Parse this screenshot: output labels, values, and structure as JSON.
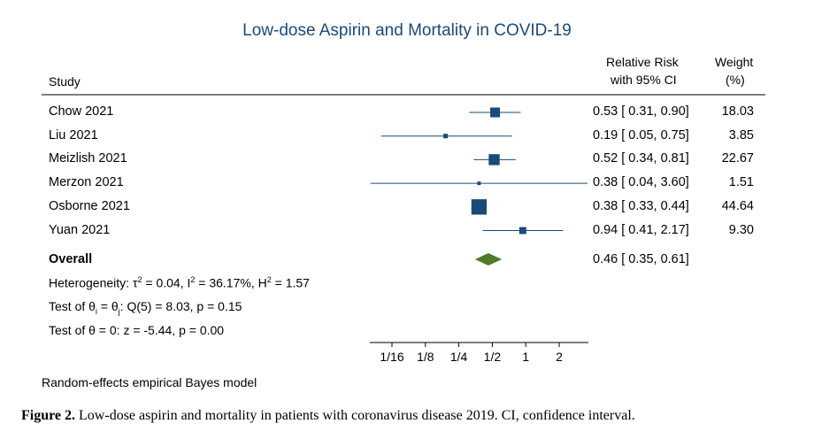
{
  "chart_data": {
    "type": "forest",
    "title": "Low-dose Aspirin and Mortality in COVID-19",
    "columns": {
      "study": "Study",
      "rr_line1": "Relative Risk",
      "rr_line2": "with 95% CI",
      "weight_line1": "Weight",
      "weight_line2": "(%)"
    },
    "studies": [
      {
        "name": "Chow 2021",
        "rr": 0.53,
        "lo": 0.31,
        "hi": 0.9,
        "weight": 18.03,
        "ci_text": "0.53 [ 0.31,  0.90]",
        "weight_text": "18.03"
      },
      {
        "name": "Liu 2021",
        "rr": 0.19,
        "lo": 0.05,
        "hi": 0.75,
        "weight": 3.85,
        "ci_text": "0.19 [ 0.05,  0.75]",
        "weight_text": "3.85"
      },
      {
        "name": "Meizlish 2021",
        "rr": 0.52,
        "lo": 0.34,
        "hi": 0.81,
        "weight": 22.67,
        "ci_text": "0.52 [ 0.34,  0.81]",
        "weight_text": "22.67"
      },
      {
        "name": "Merzon 2021",
        "rr": 0.38,
        "lo": 0.04,
        "hi": 3.6,
        "weight": 1.51,
        "ci_text": "0.38 [ 0.04,  3.60]",
        "weight_text": "1.51"
      },
      {
        "name": "Osborne 2021",
        "rr": 0.38,
        "lo": 0.33,
        "hi": 0.44,
        "weight": 44.64,
        "ci_text": "0.38 [ 0.33,  0.44]",
        "weight_text": "44.64"
      },
      {
        "name": "Yuan 2021",
        "rr": 0.94,
        "lo": 0.41,
        "hi": 2.17,
        "weight": 9.3,
        "ci_text": "0.94 [ 0.41,  2.17]",
        "weight_text": "9.30"
      }
    ],
    "overall": {
      "name": "Overall",
      "rr": 0.46,
      "lo": 0.35,
      "hi": 0.61,
      "ci_text": "0.46 [ 0.35,  0.61]"
    },
    "x_scale": "log",
    "x_ticks": [
      {
        "value": 0.0625,
        "label": "1/16"
      },
      {
        "value": 0.125,
        "label": "1/8"
      },
      {
        "value": 0.25,
        "label": "1/4"
      },
      {
        "value": 0.5,
        "label": "1/2"
      },
      {
        "value": 1,
        "label": "1"
      },
      {
        "value": 2,
        "label": "2"
      }
    ],
    "footer": "Random-effects empirical Bayes model",
    "colors": {
      "title": "#1a4a7a",
      "marker": "#1a4a7a",
      "line": "#1a4a7a",
      "overall": "#4f7a28"
    }
  },
  "stats": {
    "heterogeneity_prefix": "Heterogeneity: ",
    "tau_sym": "τ",
    "tau_sup": "2",
    "tau_val": " = 0.04, ",
    "i_sym": "I",
    "i_sup": "2",
    "i_val": " = 36.17%, ",
    "h_sym": "H",
    "h_sup": "2",
    "h_val": " = 1.57",
    "test1_prefix": "Test of θ",
    "test1_sub_i": "i",
    "test1_mid": " = θ",
    "test1_sub_j": "j",
    "test1_suffix": ": Q(5) = 8.03, p = 0.15",
    "test2": "Test of θ = 0: z = -5.44, p = 0.00"
  },
  "caption": {
    "label": "Figure 2.",
    "text": " Low-dose aspirin and mortality in patients with coronavirus disease 2019. CI, confidence interval."
  }
}
